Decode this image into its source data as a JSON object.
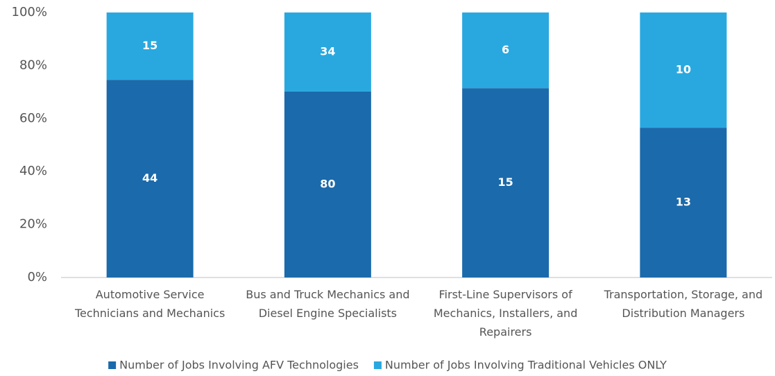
{
  "chart_data": {
    "type": "stacked_percent_bar",
    "categories": [
      "Automotive Service Technicians and Mechanics",
      "Bus and Truck Mechanics and Diesel Engine Specialists",
      "First-Line Supervisors of Mechanics, Installers, and Repairers",
      "Transportation, Storage, and Distribution Managers"
    ],
    "series": [
      {
        "name": "Number of Jobs Involving AFV Technologies",
        "color": "#1b6aab",
        "values": [
          44,
          80,
          15,
          13
        ]
      },
      {
        "name": "Number of Jobs Involving Traditional Vehicles ONLY",
        "color": "#29a8e0",
        "values": [
          15,
          34,
          6,
          10
        ]
      }
    ],
    "ylim": [
      0,
      100
    ],
    "yticks": [
      {
        "value": 0,
        "label": "0%"
      },
      {
        "value": 20,
        "label": "20%"
      },
      {
        "value": 40,
        "label": "40%"
      },
      {
        "value": 60,
        "label": "60%"
      },
      {
        "value": 80,
        "label": "80%"
      },
      {
        "value": 100,
        "label": "100%"
      }
    ],
    "grid": false,
    "legend": "bottom"
  }
}
